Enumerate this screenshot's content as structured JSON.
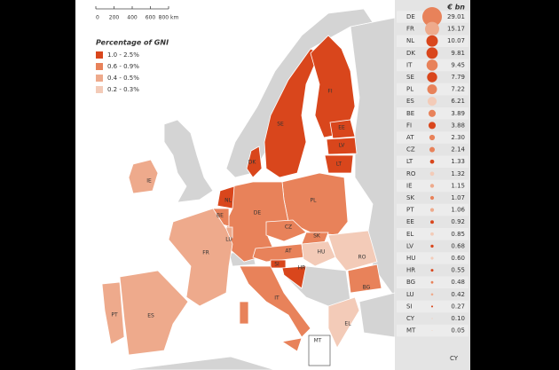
{
  "map": {
    "scale": {
      "ticks": [
        0,
        200,
        400,
        600,
        {
          "value": 800,
          "label": "800 km"
        }
      ]
    },
    "legend": {
      "title": "Percentage of GNI",
      "items": [
        {
          "label": "1.0 - 2.5%",
          "color": "#d9461c"
        },
        {
          "label": "0.6 - 0.9%",
          "color": "#e8825a"
        },
        {
          "label": "0.4 - 0.5%",
          "color": "#eeaa8c"
        },
        {
          "label": "0.2 - 0.3%",
          "color": "#f3cbb8"
        }
      ]
    },
    "country_labels": [
      "FI",
      "SE",
      "EE",
      "LV",
      "LT",
      "DK",
      "NL",
      "BE",
      "LU",
      "DE",
      "PL",
      "CZ",
      "SK",
      "AT",
      "HU",
      "SI",
      "HR",
      "RO",
      "BG",
      "FR",
      "IE",
      "PT",
      "ES",
      "IT",
      "EL",
      "MT",
      "CY"
    ]
  },
  "table": {
    "unit": "€ bn",
    "codes": [
      "DE",
      "FR",
      "NL",
      "DK",
      "IT",
      "SE",
      "PL",
      "ES",
      "BE",
      "FI",
      "AT",
      "CZ",
      "LT",
      "RO",
      "IE",
      "SK",
      "PT",
      "EE",
      "EL",
      "LV",
      "HU",
      "HR",
      "BG",
      "LU",
      "SI",
      "CY",
      "MT"
    ],
    "values": [
      29.01,
      15.17,
      10.07,
      9.81,
      9.45,
      7.79,
      7.22,
      6.21,
      3.89,
      3.88,
      2.3,
      2.14,
      1.33,
      1.32,
      1.15,
      1.07,
      1.06,
      0.92,
      0.85,
      0.68,
      0.6,
      0.55,
      0.48,
      0.42,
      0.27,
      0.1,
      0.05
    ],
    "value_labels": [
      "29.01",
      "15.17",
      "10.07",
      "9.81",
      "9.45",
      "7.79",
      "7.22",
      "6.21",
      "3.89",
      "3.88",
      "2.30",
      "2.14",
      "1.33",
      "1.32",
      "1.15",
      "1.07",
      "1.06",
      "0.92",
      "0.85",
      "0.68",
      "0.60",
      "0.55",
      "0.48",
      "0.42",
      "0.27",
      "0.10",
      "0.05"
    ],
    "colors": [
      "#e8825a",
      "#eeaa8c",
      "#d9461c",
      "#d9461c",
      "#e8825a",
      "#d9461c",
      "#e8825a",
      "#f3cbb8",
      "#e8825a",
      "#d9461c",
      "#e8825a",
      "#e8825a",
      "#d9461c",
      "#f3cbb8",
      "#eeaa8c",
      "#e8825a",
      "#eeaa8c",
      "#d9461c",
      "#f3cbb8",
      "#d9461c",
      "#f3cbb8",
      "#d9461c",
      "#e8825a",
      "#eeaa8c",
      "#d9461c",
      "#f3cbb8",
      "#f3cbb8"
    ]
  }
}
